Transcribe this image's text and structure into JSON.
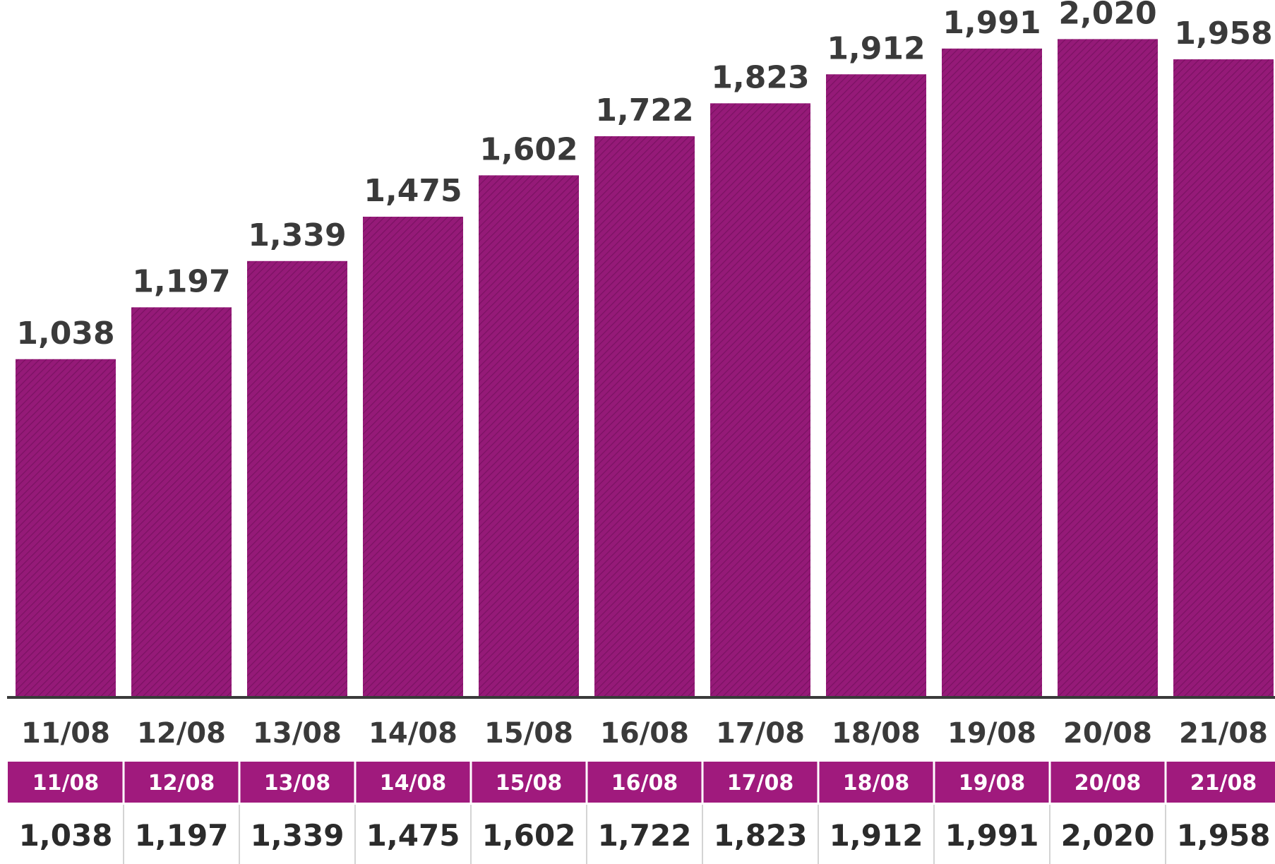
{
  "chart_data": {
    "type": "bar",
    "categories": [
      "11/08",
      "12/08",
      "13/08",
      "14/08",
      "15/08",
      "16/08",
      "17/08",
      "18/08",
      "19/08",
      "20/08",
      "21/08"
    ],
    "values": [
      1038,
      1197,
      1339,
      1475,
      1602,
      1722,
      1823,
      1912,
      1991,
      2020,
      1958
    ],
    "data_labels": [
      "1,038",
      "1,197",
      "1,339",
      "1,475",
      "1,602",
      "1,722",
      "1,823",
      "1,912",
      "1,991",
      "2,020",
      "1,958"
    ],
    "title": "",
    "xlabel": "",
    "ylabel": "",
    "ylim": [
      0,
      2140
    ],
    "grid": false,
    "legend": "none",
    "bar_color": "#951a78",
    "hatch_color": "#7a1262",
    "axis_color": "#3a3a3a"
  },
  "table": {
    "header_color": "#a01a7d",
    "header": [
      "11/08",
      "12/08",
      "13/08",
      "14/08",
      "15/08",
      "16/08",
      "17/08",
      "18/08",
      "19/08",
      "20/08",
      "21/08"
    ],
    "row": [
      "1,038",
      "1,197",
      "1,339",
      "1,475",
      "1,602",
      "1,722",
      "1,823",
      "1,912",
      "1,991",
      "2,020",
      "1,958"
    ]
  }
}
